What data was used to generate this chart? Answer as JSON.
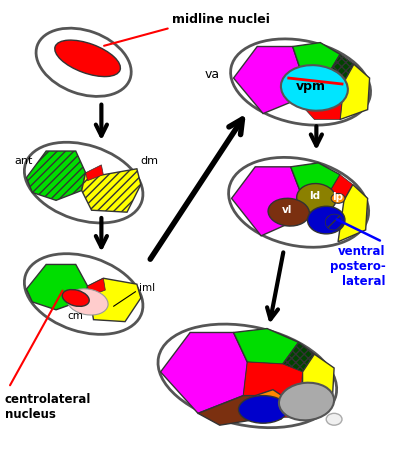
{
  "background": "#ffffff",
  "colors": {
    "red": "#ff0000",
    "green": "#00dd00",
    "yellow": "#ffff00",
    "magenta": "#ff00ff",
    "cyan": "#00e5ff",
    "blue": "#0000cc",
    "dark_olive": "#8B8000",
    "brown": "#7B3010",
    "orange": "#ff8800",
    "gray": "#aaaaaa",
    "pink": "#ffcccc",
    "outline": "#333333",
    "dark_green_hatch": "#004400"
  },
  "labels": {
    "midline_nuclei": "midline nuclei",
    "ant": "ant",
    "dm": "dm",
    "iml": "iml",
    "cm": "cm",
    "centrolateral": "centrolateral\nnucleus",
    "va": "va",
    "vpm": "vpm",
    "ld": "ld",
    "lp": "lp",
    "vl": "vl",
    "ventral": "ventral\npostero-\nlateral"
  }
}
